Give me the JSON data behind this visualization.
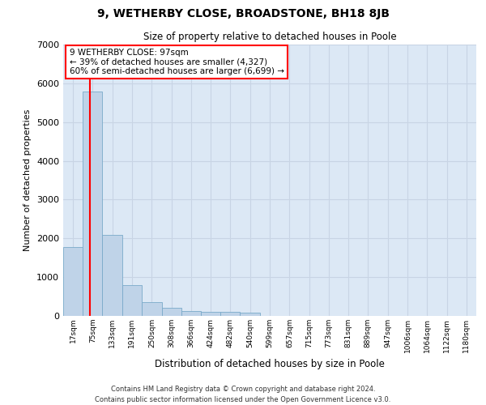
{
  "title": "9, WETHERBY CLOSE, BROADSTONE, BH18 8JB",
  "subtitle": "Size of property relative to detached houses in Poole",
  "xlabel": "Distribution of detached houses by size in Poole",
  "ylabel": "Number of detached properties",
  "bar_color": "#bfd3e8",
  "bar_edge_color": "#7aaaca",
  "grid_color": "#c8d4e4",
  "background_color": "#dce8f5",
  "red_line_x": 97,
  "categories": [
    "17sqm",
    "75sqm",
    "133sqm",
    "191sqm",
    "250sqm",
    "308sqm",
    "366sqm",
    "424sqm",
    "482sqm",
    "540sqm",
    "599sqm",
    "657sqm",
    "715sqm",
    "773sqm",
    "831sqm",
    "889sqm",
    "947sqm",
    "1006sqm",
    "1064sqm",
    "1122sqm",
    "1180sqm"
  ],
  "bin_edges": [
    17,
    75,
    133,
    191,
    250,
    308,
    366,
    424,
    482,
    540,
    599,
    657,
    715,
    773,
    831,
    889,
    947,
    1006,
    1064,
    1122,
    1180
  ],
  "bin_width": 58,
  "values": [
    1780,
    5780,
    2080,
    800,
    350,
    200,
    130,
    110,
    100,
    90,
    0,
    0,
    0,
    0,
    0,
    0,
    0,
    0,
    0,
    0,
    0
  ],
  "ylim": [
    0,
    7000
  ],
  "yticks": [
    0,
    1000,
    2000,
    3000,
    4000,
    5000,
    6000,
    7000
  ],
  "annotation_text": "9 WETHERBY CLOSE: 97sqm\n← 39% of detached houses are smaller (4,327)\n60% of semi-detached houses are larger (6,699) →",
  "annotation_box_color": "white",
  "annotation_box_edge_color": "red",
  "footer_line1": "Contains HM Land Registry data © Crown copyright and database right 2024.",
  "footer_line2": "Contains public sector information licensed under the Open Government Licence v3.0."
}
